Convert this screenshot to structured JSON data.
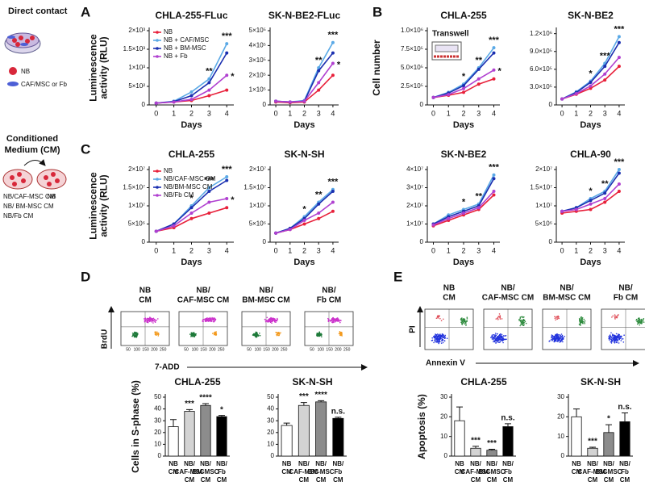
{
  "figure": {
    "panel_labels": [
      "A",
      "B",
      "C",
      "D",
      "E"
    ],
    "direct_contact": {
      "title": "Direct contact",
      "nb": "NB",
      "stroma": "CAF/MSC or Fb"
    },
    "conditioned": {
      "title": [
        "Conditioned",
        "Medium  (CM)"
      ],
      "nb": "NB",
      "groups": [
        "NB/CAF-MSC CM",
        "NB/ BM-MSC CM",
        "NB/Fb CM"
      ]
    },
    "transwell": "Transwell",
    "flow_d": {
      "headers": [
        [
          "NB",
          "CM"
        ],
        [
          "NB/",
          "CAF-MSC CM"
        ],
        [
          "NB/",
          "BM-MSC CM"
        ],
        [
          "NB/",
          "Fb CM"
        ]
      ],
      "y_label": "BrdU",
      "x_label": "7-ADD",
      "xticks": [
        "50",
        "100",
        "150",
        "200",
        "250"
      ]
    },
    "flow_e": {
      "headers": [
        [
          "NB",
          "CM"
        ],
        [
          "NB/",
          "CAF-MSC CM"
        ],
        [
          "NB/",
          "BM-MSC CM"
        ],
        [
          "NB/",
          "Fb CM"
        ]
      ],
      "y_label": "PI",
      "x_label": "Annexin V"
    }
  },
  "chart_data": [
    {
      "type": "line",
      "title": "CHLA-255-FLuc",
      "ylabel": [
        "Luminescence",
        "activity (RLU)"
      ],
      "xlabel": "Days",
      "x": [
        0,
        1,
        2,
        3,
        4
      ],
      "xlim": [
        -0.4,
        4.4
      ],
      "xticks": [
        0,
        1,
        2,
        3,
        4
      ],
      "ylim": [
        0,
        2000
      ],
      "yticks": [
        0,
        {
          "value": 500,
          "label": "5×10²"
        },
        {
          "value": 1000,
          "label": "1×10³"
        },
        {
          "value": 1500,
          "label": "1.5×10³"
        },
        {
          "value": 2000,
          "label": "2×10³"
        }
      ],
      "legend": "upper left",
      "series": [
        {
          "name": "NB",
          "color": "#e8203a",
          "values": [
            50,
            80,
            120,
            250,
            400
          ]
        },
        {
          "name": "NB + CAF/MSC",
          "color": "#5aa9e6",
          "values": [
            50,
            100,
            350,
            700,
            1650
          ]
        },
        {
          "name": "NB + BM-MSC",
          "color": "#1a2fb0",
          "values": [
            50,
            90,
            250,
            600,
            1400
          ]
        },
        {
          "name": "NB + Fb",
          "color": "#b040d0",
          "values": [
            50,
            80,
            150,
            400,
            800
          ]
        }
      ],
      "annotations": [
        {
          "text": "**",
          "x": 3
        },
        {
          "text": "***",
          "x": 4
        },
        {
          "text": "*",
          "x": 4,
          "series": 3
        }
      ]
    },
    {
      "type": "line",
      "title": "SK-N-BE2-FLuc",
      "xlabel": "Days",
      "x": [
        0,
        1,
        2,
        3,
        4
      ],
      "xlim": [
        -0.4,
        4.4
      ],
      "xticks": [
        0,
        1,
        2,
        3,
        4
      ],
      "ylim": [
        0,
        500000
      ],
      "yticks": [
        0,
        {
          "value": 100000,
          "label": "1×10⁵"
        },
        {
          "value": 200000,
          "label": "2×10⁵"
        },
        {
          "value": 300000,
          "label": "3×10⁵"
        },
        {
          "value": 400000,
          "label": "4×10⁵"
        },
        {
          "value": 500000,
          "label": "5×10⁵"
        }
      ],
      "series": [
        {
          "color": "#e8203a",
          "values": [
            20000,
            15000,
            20000,
            100000,
            200000
          ]
        },
        {
          "color": "#5aa9e6",
          "values": [
            25000,
            20000,
            30000,
            250000,
            420000
          ]
        },
        {
          "color": "#1a2fb0",
          "values": [
            25000,
            20000,
            25000,
            230000,
            350000
          ]
        },
        {
          "color": "#b040d0",
          "values": [
            25000,
            20000,
            25000,
            150000,
            280000
          ]
        }
      ],
      "annotations": [
        {
          "text": "**",
          "x": 3
        },
        {
          "text": "***",
          "x": 4
        },
        {
          "text": "*",
          "x": 4,
          "series": 3
        }
      ]
    },
    {
      "type": "line",
      "title": "CHLA-255",
      "ylabel": [
        "Cell number"
      ],
      "xlabel": "Days",
      "x": [
        0,
        1,
        2,
        3,
        4
      ],
      "xlim": [
        -0.4,
        4.4
      ],
      "xticks": [
        0,
        1,
        2,
        3,
        4
      ],
      "ylim": [
        0,
        1000000
      ],
      "yticks": [
        0,
        {
          "value": 250000,
          "label": "2.5×10⁵"
        },
        {
          "value": 500000,
          "label": "5.0×10⁵"
        },
        {
          "value": 750000,
          "label": "7.5×10⁵"
        },
        {
          "value": 1000000,
          "label": "1.0×10⁶"
        }
      ],
      "series": [
        {
          "color": "#e8203a",
          "values": [
            100000,
            130000,
            170000,
            280000,
            350000
          ]
        },
        {
          "color": "#5aa9e6",
          "values": [
            100000,
            170000,
            280000,
            500000,
            770000
          ]
        },
        {
          "color": "#1a2fb0",
          "values": [
            100000,
            160000,
            260000,
            480000,
            700000
          ]
        },
        {
          "color": "#b040d0",
          "values": [
            100000,
            140000,
            220000,
            350000,
            470000
          ]
        }
      ],
      "annotations": [
        {
          "text": "*",
          "x": 2
        },
        {
          "text": "**",
          "x": 3
        },
        {
          "text": "***",
          "x": 4
        },
        {
          "text": "*",
          "x": 4,
          "series": 3
        }
      ]
    },
    {
      "type": "line",
      "title": "SK-N-BE2",
      "xlabel": "Days",
      "x": [
        0,
        1,
        2,
        3,
        4
      ],
      "xlim": [
        -0.4,
        4.4
      ],
      "xticks": [
        0,
        1,
        2,
        3,
        4
      ],
      "ylim": [
        0,
        1250000
      ],
      "yticks": [
        0,
        {
          "value": 300000,
          "label": "3.0×10⁵"
        },
        {
          "value": 600000,
          "label": "6.0×10⁵"
        },
        {
          "value": 900000,
          "label": "9.0×10⁵"
        },
        {
          "value": 1200000,
          "label": "1.2×10⁶"
        }
      ],
      "series": [
        {
          "color": "#e8203a",
          "values": [
            100000,
            180000,
            280000,
            420000,
            650000
          ]
        },
        {
          "color": "#5aa9e6",
          "values": [
            100000,
            220000,
            400000,
            700000,
            1150000
          ]
        },
        {
          "color": "#1a2fb0",
          "values": [
            100000,
            210000,
            380000,
            650000,
            1050000
          ]
        },
        {
          "color": "#b040d0",
          "values": [
            100000,
            190000,
            320000,
            520000,
            800000
          ]
        }
      ],
      "annotations": [
        {
          "text": "*",
          "x": 2
        },
        {
          "text": "***",
          "x": 3
        },
        {
          "text": "***",
          "x": 4
        }
      ]
    },
    {
      "type": "line",
      "title": "CHLA-255",
      "ylabel": [
        "Luminescence",
        "activity (RLU)"
      ],
      "xlabel": "Days",
      "x": [
        0,
        1,
        2,
        3,
        4
      ],
      "xlim": [
        -0.4,
        4.4
      ],
      "xticks": [
        0,
        1,
        2,
        3,
        4
      ],
      "ylim": [
        0,
        20000000
      ],
      "yticks": [
        0,
        {
          "value": 5000000,
          "label": "5×10⁶"
        },
        {
          "value": 10000000,
          "label": "1×10⁷"
        },
        {
          "value": 15000000,
          "label": "1.5×10⁷"
        },
        {
          "value": 20000000,
          "label": "2×10⁷"
        }
      ],
      "legend": "upper left",
      "series": [
        {
          "name": "NB",
          "color": "#e8203a",
          "values": [
            3000000,
            4000000,
            6500000,
            8000000,
            9500000
          ]
        },
        {
          "name": "NB/CAF-MSC CM",
          "color": "#5aa9e6",
          "values": [
            3000000,
            5000000,
            10000000,
            15000000,
            18000000
          ]
        },
        {
          "name": "NB/BM-MSC CM",
          "color": "#1a2fb0",
          "values": [
            3000000,
            5000000,
            9500000,
            14000000,
            17000000
          ]
        },
        {
          "name": "NB/Fb CM",
          "color": "#b040d0",
          "values": [
            3000000,
            4500000,
            8000000,
            11000000,
            12000000
          ]
        }
      ],
      "annotations": [
        {
          "text": "*",
          "x": 2
        },
        {
          "text": "***",
          "x": 3
        },
        {
          "text": "***",
          "x": 4
        },
        {
          "text": "*",
          "x": 4,
          "series": 3
        }
      ]
    },
    {
      "type": "line",
      "title": "SK-N-SH",
      "xlabel": "Days",
      "x": [
        0,
        1,
        2,
        3,
        4
      ],
      "xlim": [
        -0.4,
        4.4
      ],
      "xticks": [
        0,
        1,
        2,
        3,
        4
      ],
      "ylim": [
        0,
        20000000
      ],
      "yticks": [
        0,
        {
          "value": 5000000,
          "label": "5×10⁶"
        },
        {
          "value": 10000000,
          "label": "1×10⁷"
        },
        {
          "value": 15000000,
          "label": "1.5×10⁷"
        },
        {
          "value": 20000000,
          "label": "2×10⁷"
        }
      ],
      "series": [
        {
          "color": "#e8203a",
          "values": [
            2500000,
            3500000,
            5000000,
            6500000,
            8500000
          ]
        },
        {
          "color": "#5aa9e6",
          "values": [
            2500000,
            3800000,
            7000000,
            11000000,
            14500000
          ]
        },
        {
          "color": "#1a2fb0",
          "values": [
            2500000,
            3800000,
            6500000,
            10500000,
            14000000
          ]
        },
        {
          "color": "#b040d0",
          "values": [
            2500000,
            3500000,
            6000000,
            8000000,
            11000000
          ]
        }
      ],
      "annotations": [
        {
          "text": "*",
          "x": 2
        },
        {
          "text": "**",
          "x": 3
        },
        {
          "text": "***",
          "x": 4
        }
      ]
    },
    {
      "type": "line",
      "title": "SK-N-BE2",
      "xlabel": "Days",
      "x": [
        0,
        1,
        2,
        3,
        4
      ],
      "xlim": [
        -0.4,
        4.4
      ],
      "xticks": [
        0,
        1,
        2,
        3,
        4
      ],
      "ylim": [
        0,
        40000000
      ],
      "yticks": [
        0,
        {
          "value": 10000000,
          "label": "1×10⁷"
        },
        {
          "value": 20000000,
          "label": "2×10⁷"
        },
        {
          "value": 30000000,
          "label": "3×10⁷"
        },
        {
          "value": 40000000,
          "label": "4×10⁷"
        }
      ],
      "series": [
        {
          "color": "#e8203a",
          "values": [
            9000000,
            12000000,
            15000000,
            18000000,
            26000000
          ]
        },
        {
          "color": "#5aa9e6",
          "values": [
            10000000,
            15000000,
            18000000,
            21000000,
            37000000
          ]
        },
        {
          "color": "#1a2fb0",
          "values": [
            10000000,
            14000000,
            17000000,
            20000000,
            35000000
          ]
        },
        {
          "color": "#b040d0",
          "values": [
            9500000,
            13000000,
            16000000,
            19000000,
            28000000
          ]
        }
      ],
      "annotations": [
        {
          "text": "*",
          "x": 2
        },
        {
          "text": "**",
          "x": 3
        },
        {
          "text": "***",
          "x": 4
        }
      ]
    },
    {
      "type": "line",
      "title": "CHLA-90",
      "xlabel": "Days",
      "x": [
        0,
        1,
        2,
        3,
        4
      ],
      "xlim": [
        -0.4,
        4.4
      ],
      "xticks": [
        0,
        1,
        2,
        3,
        4
      ],
      "ylim": [
        0,
        20000000
      ],
      "yticks": [
        0,
        {
          "value": 5000000,
          "label": "5×10⁶"
        },
        {
          "value": 10000000,
          "label": "1×10⁷"
        },
        {
          "value": 15000000,
          "label": "1.5×10⁷"
        },
        {
          "value": 20000000,
          "label": "2×10⁷"
        }
      ],
      "series": [
        {
          "color": "#e8203a",
          "values": [
            8000000,
            8500000,
            9000000,
            11000000,
            14000000
          ]
        },
        {
          "color": "#5aa9e6",
          "values": [
            8500000,
            9500000,
            12000000,
            14000000,
            20000000
          ]
        },
        {
          "color": "#1a2fb0",
          "values": [
            8500000,
            9500000,
            11500000,
            13500000,
            19000000
          ]
        },
        {
          "color": "#b040d0",
          "values": [
            8500000,
            9000000,
            10500000,
            12000000,
            16000000
          ]
        }
      ],
      "annotations": [
        {
          "text": "*",
          "x": 2
        },
        {
          "text": "**",
          "x": 3
        },
        {
          "text": "***",
          "x": 4
        }
      ]
    },
    {
      "type": "bar",
      "title": "CHLA-255",
      "ylabel": [
        "Cells in S-phase (%)"
      ],
      "categories": [
        [
          "NB",
          "CM"
        ],
        [
          "NB/",
          "CAF-MSC",
          "CM"
        ],
        [
          "NB/",
          "BM-MSC",
          "CM"
        ],
        [
          "NB/",
          "Fb",
          "CM"
        ]
      ],
      "values": [
        25,
        38,
        43,
        33.5
      ],
      "errors": [
        6,
        1.5,
        1.5,
        1
      ],
      "colors": [
        "#ffffff",
        "#d3d3d3",
        "#8c8c8c",
        "#000000"
      ],
      "ylim": [
        0,
        50
      ],
      "yticks": [
        0,
        10,
        20,
        30,
        40,
        50
      ],
      "annotations": [
        {
          "text": "***",
          "index": 1
        },
        {
          "text": "****",
          "index": 2
        },
        {
          "text": "*",
          "index": 3
        }
      ]
    },
    {
      "type": "bar",
      "title": "SK-N-SH",
      "categories": [
        [
          "NB",
          "CM"
        ],
        [
          "NB/",
          "CAF-MSC",
          "CM"
        ],
        [
          "NB/",
          "BM-MSC",
          "CM"
        ],
        [
          "NB/",
          "Fb",
          "CM"
        ]
      ],
      "values": [
        26,
        43,
        46,
        32
      ],
      "errors": [
        2,
        2.5,
        1,
        1
      ],
      "colors": [
        "#ffffff",
        "#d3d3d3",
        "#8c8c8c",
        "#000000"
      ],
      "ylim": [
        0,
        50
      ],
      "yticks": [
        0,
        10,
        20,
        30,
        40,
        50
      ],
      "annotations": [
        {
          "text": "***",
          "index": 1
        },
        {
          "text": "****",
          "index": 2
        },
        {
          "text": "n.s.",
          "index": 3
        }
      ]
    },
    {
      "type": "bar",
      "title": "CHLA-255",
      "ylabel": [
        "Apoptosis (%)"
      ],
      "categories": [
        [
          "NB",
          "CM"
        ],
        [
          "NB/",
          "CAF-MSC",
          "CM"
        ],
        [
          "NB/",
          "BM-MSC",
          "CM"
        ],
        [
          "NB/",
          "Fb",
          "CM"
        ]
      ],
      "values": [
        18,
        4,
        3,
        15
      ],
      "errors": [
        7,
        1,
        0.5,
        1.5
      ],
      "colors": [
        "#ffffff",
        "#d3d3d3",
        "#8c8c8c",
        "#000000"
      ],
      "ylim": [
        0,
        30
      ],
      "yticks": [
        0,
        10,
        20,
        30
      ],
      "annotations": [
        {
          "text": "***",
          "index": 1
        },
        {
          "text": "***",
          "index": 2
        },
        {
          "text": "n.s.",
          "index": 3
        }
      ]
    },
    {
      "type": "bar",
      "title": "SK-N-SH",
      "categories": [
        [
          "NB",
          "CM"
        ],
        [
          "NB/",
          "CAF-MSC",
          "CM"
        ],
        [
          "NB/",
          "BM-MSC",
          "CM"
        ],
        [
          "NB/",
          "Fb",
          "CM"
        ]
      ],
      "values": [
        20,
        4,
        12,
        17.5
      ],
      "errors": [
        4,
        0.5,
        4,
        4.5
      ],
      "colors": [
        "#ffffff",
        "#d3d3d3",
        "#8c8c8c",
        "#000000"
      ],
      "ylim": [
        0,
        30
      ],
      "yticks": [
        0,
        10,
        20,
        30
      ],
      "annotations": [
        {
          "text": "***",
          "index": 1
        },
        {
          "text": "*",
          "index": 2
        },
        {
          "text": "n.s.",
          "index": 3
        }
      ]
    }
  ]
}
